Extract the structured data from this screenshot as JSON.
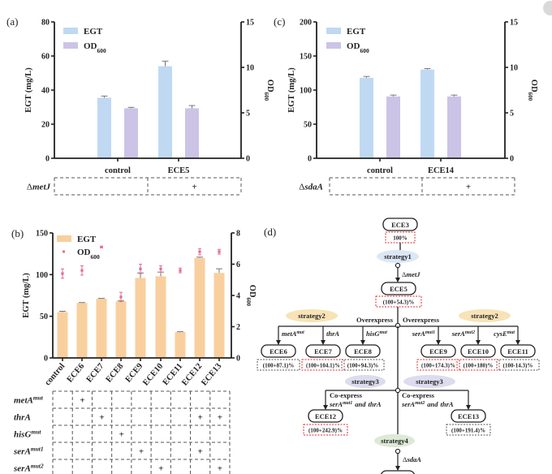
{
  "chart_data": [
    {
      "panel": "(a)",
      "type": "bar",
      "categories": [
        "control",
        "ECE5"
      ],
      "ylabel": "EGT (mg/L)",
      "y2label": {
        "text": "OD",
        "sub": "600"
      },
      "ylim": [
        0,
        80
      ],
      "yticks": [
        0,
        20,
        40,
        60,
        80
      ],
      "y2lim": [
        0,
        15
      ],
      "y2ticks": [
        0,
        5,
        10,
        15
      ],
      "legend": "top-left",
      "series": [
        {
          "name": "EGT",
          "sub": "",
          "axis": "left",
          "style": "bar",
          "color": "#bfd9f3",
          "values": [
            35.5,
            54
          ],
          "errors": [
            1,
            3
          ]
        },
        {
          "name": "OD",
          "sub": "600",
          "axis": "right",
          "style": "bar",
          "color": "#cbc4e6",
          "values": [
            5.5,
            5.5
          ],
          "errors": [
            0.1,
            0.3
          ]
        }
      ],
      "table": {
        "rows": [
          {
            "symbol": "Δ",
            "gene": "metJ",
            "sup": "",
            "marks": [
              "",
              "+"
            ]
          }
        ]
      }
    },
    {
      "panel": "(b)",
      "type": "bar",
      "categories": [
        "control",
        "ECE6",
        "ECE7",
        "ECE8",
        "ECE9",
        "ECE10",
        "ECE11",
        "ECE12",
        "ECE13"
      ],
      "ylabel": "EGT (mg/L)",
      "y2label": {
        "text": "OD",
        "sub": "600"
      },
      "ylim": [
        0,
        150
      ],
      "yticks": [
        0,
        50,
        100,
        150
      ],
      "y2lim": [
        0,
        8
      ],
      "y2ticks": [
        0,
        2,
        4,
        6,
        8
      ],
      "legend": "top-left",
      "series": [
        {
          "name": "EGT",
          "sub": "",
          "axis": "left",
          "style": "bar",
          "color": "#f9cf9e",
          "values": [
            55,
            66,
            71,
            68,
            96,
            98,
            31,
            120,
            102
          ],
          "errors": [
            1,
            0.5,
            0.5,
            0.5,
            6,
            5,
            0.5,
            1,
            5
          ]
        },
        {
          "name": "OD",
          "sub": "600",
          "axis": "right",
          "style": "points",
          "color": "#e0708a",
          "values": [
            5.4,
            5.6,
            7.1,
            3.9,
            5.7,
            5.7,
            5.6,
            6.8,
            6.8
          ],
          "errors": [
            0.3,
            0.3,
            0.05,
            0.3,
            0.3,
            0.2,
            0.15,
            0.2,
            0.15
          ]
        }
      ],
      "table": {
        "rows": [
          {
            "symbol": "",
            "gene": "metA",
            "sup": "mut",
            "marks": [
              "",
              "+",
              "",
              "",
              "",
              "",
              "",
              "",
              ""
            ]
          },
          {
            "symbol": "",
            "gene": "thrA",
            "sup": "",
            "marks": [
              "",
              "",
              "+",
              "",
              "",
              "",
              "",
              "+",
              "+"
            ]
          },
          {
            "symbol": "",
            "gene": "hisG",
            "sup": "mut",
            "marks": [
              "",
              "",
              "",
              "+",
              "",
              "",
              "",
              "",
              ""
            ]
          },
          {
            "symbol": "",
            "gene": "serA",
            "sup": "mut1",
            "marks": [
              "",
              "",
              "",
              "",
              "+",
              "",
              "",
              "+",
              ""
            ]
          },
          {
            "symbol": "",
            "gene": "serA",
            "sup": "mut2",
            "marks": [
              "",
              "",
              "",
              "",
              "",
              "+",
              "",
              "",
              "+"
            ]
          }
        ]
      }
    },
    {
      "panel": "(c)",
      "type": "bar",
      "categories": [
        "control",
        "ECE14"
      ],
      "ylabel": "EGT (mg/L)",
      "y2label": {
        "text": "OD",
        "sub": "600"
      },
      "ylim": [
        0,
        200
      ],
      "yticks": [
        0,
        50,
        100,
        150,
        200
      ],
      "y2lim": [
        0,
        15
      ],
      "y2ticks": [
        0,
        5,
        10,
        15
      ],
      "legend": "top-left",
      "series": [
        {
          "name": "EGT",
          "sub": "",
          "axis": "left",
          "style": "bar",
          "color": "#bfd9f3",
          "values": [
            118,
            130
          ],
          "errors": [
            2,
            1.5
          ]
        },
        {
          "name": "OD",
          "sub": "600",
          "axis": "right",
          "style": "bar",
          "color": "#cbc4e6",
          "values": [
            6.8,
            6.8
          ],
          "errors": [
            0.15,
            0.15
          ]
        }
      ],
      "table": {
        "rows": [
          {
            "symbol": "Δ",
            "gene": "sdaA",
            "sup": "",
            "marks": [
              "",
              "+"
            ]
          }
        ]
      }
    }
  ],
  "diagram": {
    "panel": "(d)",
    "highlight_color": "#e02a2a",
    "root": {
      "name": "ECE3",
      "value": "100%",
      "highlight": true
    },
    "strategy1": "strategy1",
    "deletion1": {
      "symbol": "Δ",
      "gene": "metJ"
    },
    "ece5": {
      "name": "ECE5",
      "value": "(100+54.3)%",
      "highlight": true
    },
    "strategy2": "strategy2",
    "overexpress": "Overexpress",
    "branch2": [
      {
        "gene": "metA",
        "sup": "mut",
        "name": "ECE6",
        "value": "(100+87.1)%",
        "highlight": false
      },
      {
        "gene": "thrA",
        "sup": "",
        "name": "ECE7",
        "value": "(100+104.1)%",
        "highlight": true
      },
      {
        "gene": "hisG",
        "sup": "mut",
        "name": "ECE8",
        "value": "(100+94.3)%",
        "highlight": false
      },
      {
        "gene": "serA",
        "sup": "mut1",
        "name": "ECE9",
        "value": "(100+174.3)%",
        "highlight": true
      },
      {
        "gene": "serA",
        "sup": "mut2",
        "name": "ECE10",
        "value": "(100+180)%",
        "highlight": true
      },
      {
        "gene": "cysE",
        "sup": "mut",
        "name": "ECE11",
        "value": "(100-14.3)%",
        "highlight": false
      }
    ],
    "strategy3": "strategy3",
    "coexpress": "Co-express",
    "branch3": [
      {
        "gene": "serA",
        "sup": "mut1",
        "conj": "and",
        "gene2": "thrA",
        "name": "ECE12",
        "value": "(100+242.9)%",
        "highlight": true
      },
      {
        "gene": "serA",
        "sup": "mut2",
        "conj": "and",
        "gene2": "thrA",
        "name": "ECE13",
        "value": "(100+191.4)%",
        "highlight": false
      }
    ],
    "strategy4": "strategy4",
    "deletion2": {
      "symbol": "Δ",
      "gene": "sdaA"
    },
    "strategy_colors": {
      "strategy1": "#dbe7f5",
      "strategy2": "#f7e3b6",
      "strategy3": "#dcdcee",
      "strategy4": "#dde9d4"
    }
  }
}
